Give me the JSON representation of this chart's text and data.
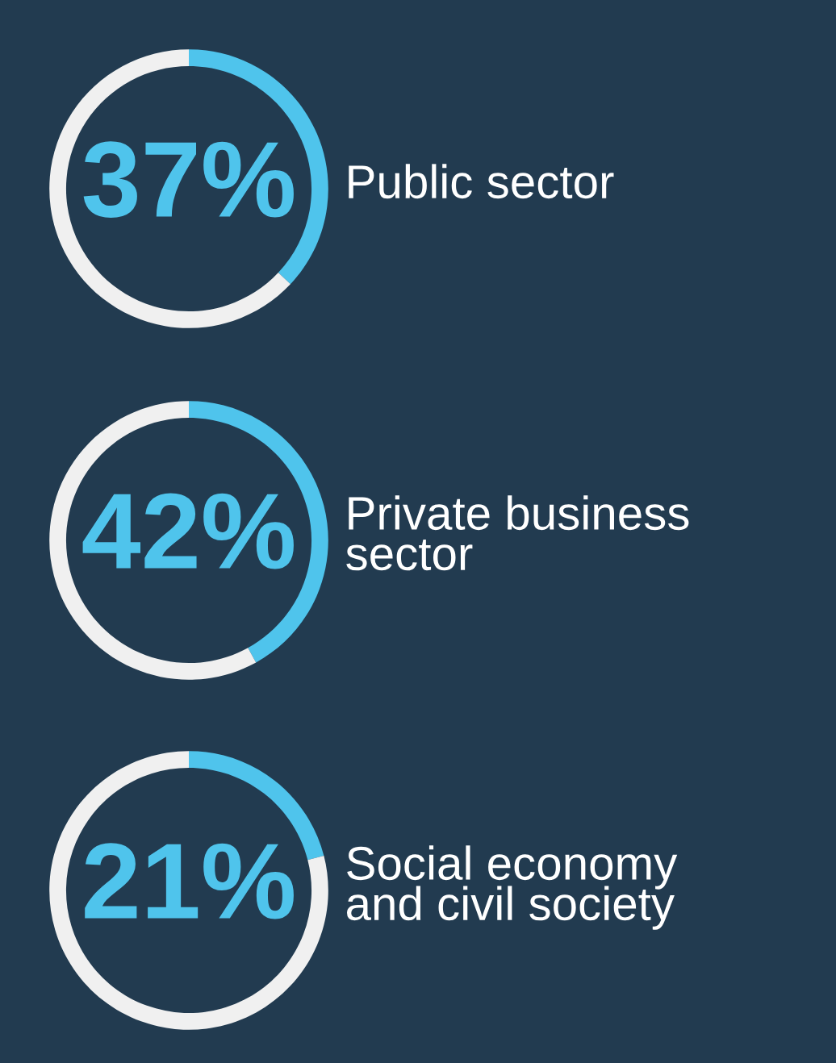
{
  "chart_data": [
    {
      "type": "donut",
      "categories": [
        "Public sector",
        null
      ],
      "values": [
        37,
        63
      ],
      "colors": [
        "#4fc4ec",
        "#f0f0f0"
      ],
      "value_labels": [
        "37%",
        null
      ]
    },
    {
      "type": "donut",
      "categories": [
        "Private business\nsector",
        null
      ],
      "values": [
        42,
        58
      ],
      "colors": [
        "#4fc4ec",
        "#f0f0f0"
      ],
      "value_labels": [
        "42%",
        null
      ]
    },
    {
      "type": "donut",
      "categories": [
        "Social economy\nand civil society",
        null
      ],
      "values": [
        21,
        79
      ],
      "colors": [
        "#4fc4ec",
        "#f0f0f0"
      ],
      "value_labels": [
        "21%",
        null
      ]
    }
  ]
}
